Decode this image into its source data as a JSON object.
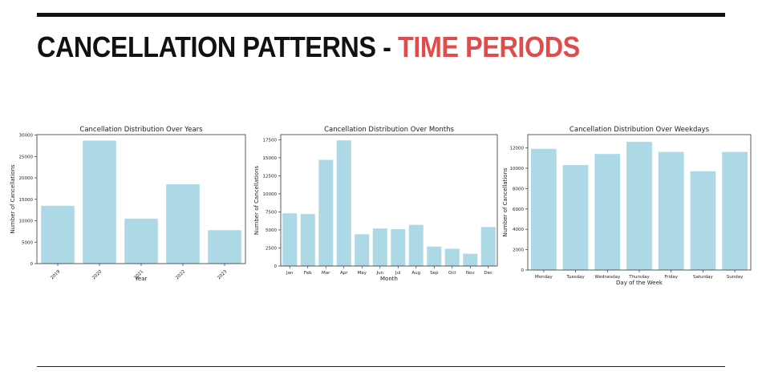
{
  "slide": {
    "title_main": "CANCELLATION PATTERNS - ",
    "title_accent": "TIME PERIODS",
    "accent_color": "#e04b4b"
  },
  "colors": {
    "bar": "#add8e6"
  },
  "chart_data": [
    {
      "type": "bar",
      "title": "Cancellation Distribution Over Years",
      "xlabel": "Year",
      "ylabel": "Number of Cancellations",
      "categories": [
        "2019",
        "2020",
        "2021",
        "2022",
        "2023"
      ],
      "values": [
        13500,
        28700,
        10500,
        18500,
        7800
      ],
      "ylim": [
        0,
        30100
      ],
      "yticks": [
        0,
        5000,
        10000,
        15000,
        20000,
        25000,
        30000
      ],
      "xtick_rotation": 45,
      "grid": false,
      "legend": "none"
    },
    {
      "type": "bar",
      "title": "Cancellation Distribution Over Months",
      "xlabel": "Month",
      "ylabel": "Number of Cancellations",
      "categories": [
        "Jan",
        "Feb",
        "Mar",
        "Apr",
        "May",
        "Jun",
        "Jul",
        "Aug",
        "Sep",
        "Oct",
        "Nov",
        "Dec"
      ],
      "values": [
        7300,
        7200,
        14700,
        17400,
        4400,
        5200,
        5100,
        5700,
        2700,
        2400,
        1700,
        5400
      ],
      "ylim": [
        0,
        18200
      ],
      "yticks": [
        0,
        2500,
        5000,
        7500,
        10000,
        12500,
        15000,
        17500
      ],
      "xtick_rotation": 0,
      "grid": false,
      "legend": "none"
    },
    {
      "type": "bar",
      "title": "Cancellation Distribution Over Weekdays",
      "xlabel": "Day of the Week",
      "ylabel": "Number of Cancellations",
      "categories": [
        "Monday",
        "Tuesday",
        "Wednesday",
        "Thursday",
        "Friday",
        "Saturday",
        "Sunday"
      ],
      "values": [
        11900,
        10300,
        11400,
        12600,
        11600,
        9700,
        11600
      ],
      "ylim": [
        0,
        13300
      ],
      "yticks": [
        0,
        2000,
        4000,
        6000,
        8000,
        10000,
        12000
      ],
      "xtick_rotation": 0,
      "grid": false,
      "legend": "none"
    }
  ]
}
